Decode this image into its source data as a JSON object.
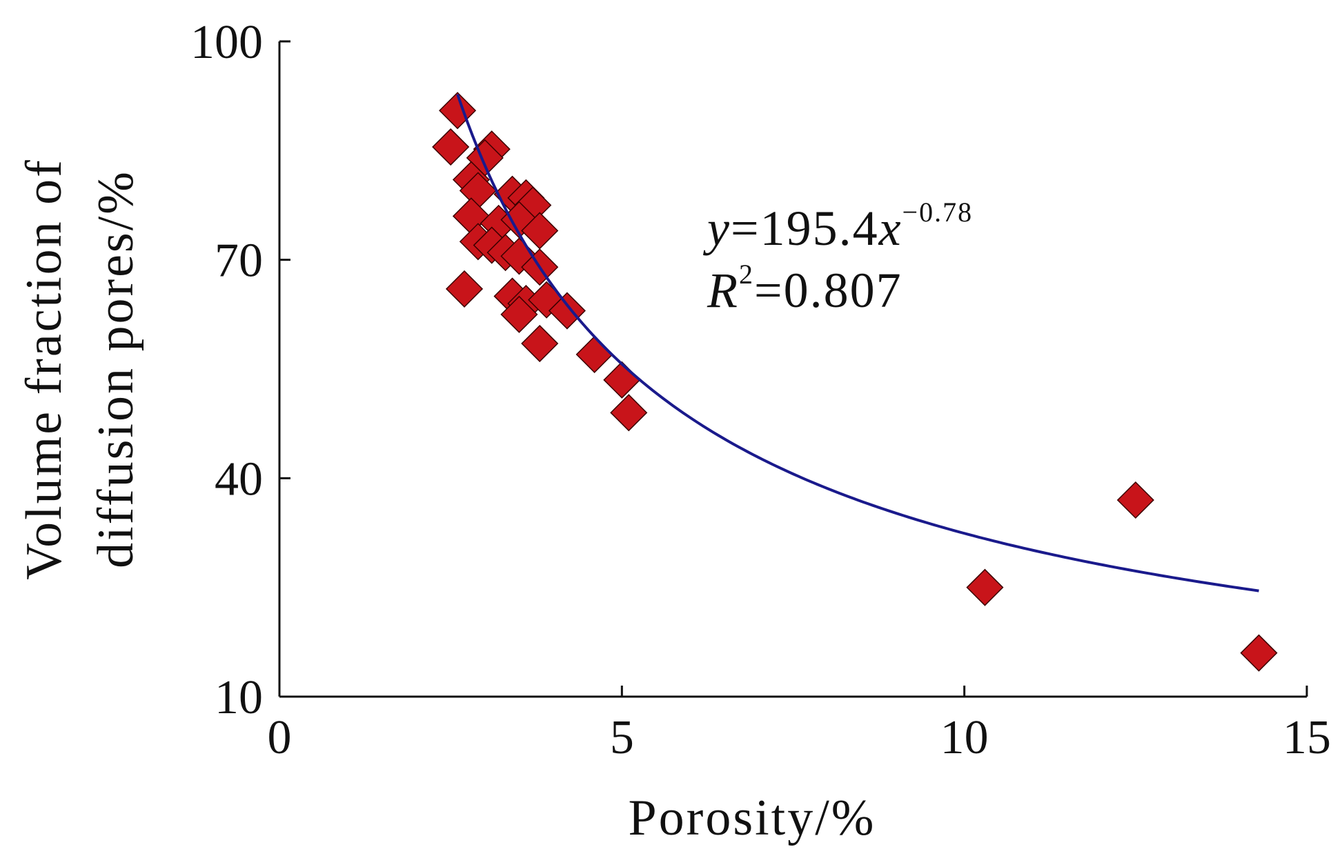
{
  "chart_data": {
    "type": "scatter",
    "title": "",
    "xlabel": "Porosity/%",
    "ylabel_lines": [
      "Volume fraction of",
      "diffusion pores/%"
    ],
    "xlim": [
      0,
      15
    ],
    "ylim": [
      10,
      100
    ],
    "x_ticks": [
      0,
      5,
      10,
      15
    ],
    "y_ticks": [
      10,
      40,
      70,
      100
    ],
    "x_tick_labels": [
      "0",
      "5",
      "10",
      "15"
    ],
    "y_tick_labels": [
      "10",
      "40",
      "70",
      "100"
    ],
    "grid": false,
    "marker": "diamond",
    "colors": {
      "point": "#c8141a",
      "fit": "#1a1a8c",
      "axis": "#111111"
    },
    "points": [
      [
        2.6,
        90.5
      ],
      [
        2.5,
        85.5
      ],
      [
        3.1,
        85.2
      ],
      [
        3.0,
        84.0
      ],
      [
        2.8,
        81.0
      ],
      [
        2.9,
        79.5
      ],
      [
        3.4,
        79.0
      ],
      [
        3.6,
        78.5
      ],
      [
        3.7,
        77.5
      ],
      [
        2.8,
        76.0
      ],
      [
        3.2,
        75.0
      ],
      [
        3.5,
        75.5
      ],
      [
        3.8,
        74.0
      ],
      [
        2.9,
        72.5
      ],
      [
        3.1,
        72.0
      ],
      [
        3.3,
        71.0
      ],
      [
        3.5,
        70.5
      ],
      [
        3.8,
        69.0
      ],
      [
        2.7,
        66.0
      ],
      [
        3.4,
        65.0
      ],
      [
        3.6,
        64.0
      ],
      [
        3.9,
        64.5
      ],
      [
        4.2,
        63.0
      ],
      [
        3.5,
        62.5
      ],
      [
        3.8,
        58.5
      ],
      [
        4.6,
        57.0
      ],
      [
        5.0,
        53.5
      ],
      [
        5.1,
        49.0
      ],
      [
        10.3,
        25.0
      ],
      [
        12.5,
        37.0
      ],
      [
        14.3,
        16.0
      ]
    ],
    "fit": {
      "type": "power",
      "a": 195.4,
      "b": -0.78,
      "x_range": [
        2.6,
        14.3
      ],
      "equation_parts": {
        "y": "y",
        "eq": "=195.4",
        "x": "x",
        "exp": "−0.78"
      },
      "r2_parts": {
        "R": "R",
        "sup": "2",
        "eq": "=0.807"
      }
    }
  }
}
